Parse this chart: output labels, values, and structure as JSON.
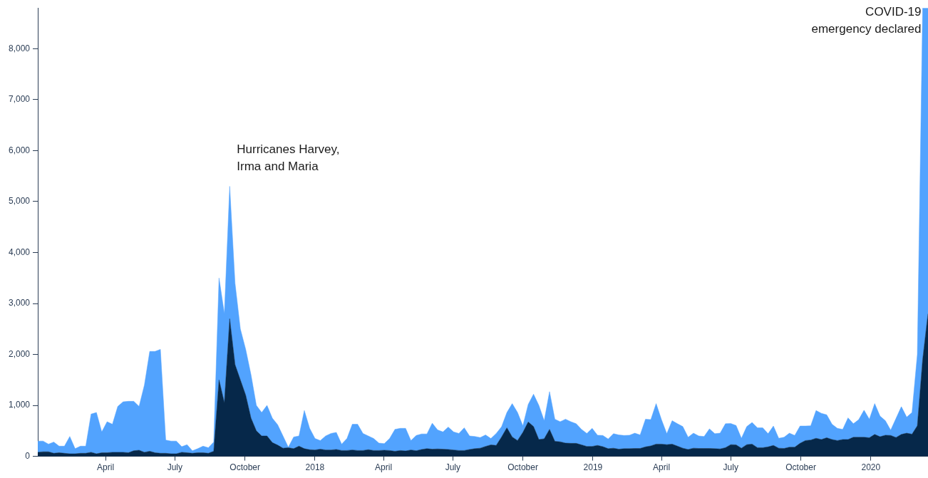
{
  "chart_data": {
    "type": "area",
    "stacked": true,
    "x": [
      "2017-01-02",
      "2017-01-09",
      "2017-01-16",
      "2017-01-23",
      "2017-01-30",
      "2017-02-06",
      "2017-02-13",
      "2017-02-20",
      "2017-02-27",
      "2017-03-06",
      "2017-03-13",
      "2017-03-20",
      "2017-03-27",
      "2017-04-03",
      "2017-04-10",
      "2017-04-17",
      "2017-04-24",
      "2017-05-01",
      "2017-05-08",
      "2017-05-15",
      "2017-05-22",
      "2017-05-29",
      "2017-06-05",
      "2017-06-12",
      "2017-06-19",
      "2017-06-26",
      "2017-07-03",
      "2017-07-10",
      "2017-07-17",
      "2017-07-24",
      "2017-07-31",
      "2017-08-07",
      "2017-08-14",
      "2017-08-21",
      "2017-08-28",
      "2017-09-04",
      "2017-09-11",
      "2017-09-18",
      "2017-09-25",
      "2017-10-02",
      "2017-10-09",
      "2017-10-16",
      "2017-10-23",
      "2017-10-30",
      "2017-11-06",
      "2017-11-13",
      "2017-11-20",
      "2017-11-27",
      "2017-12-04",
      "2017-12-11",
      "2017-12-18",
      "2017-12-25",
      "2018-01-01",
      "2018-01-08",
      "2018-01-15",
      "2018-01-22",
      "2018-01-29",
      "2018-02-05",
      "2018-02-12",
      "2018-02-19",
      "2018-02-26",
      "2018-03-05",
      "2018-03-12",
      "2018-03-19",
      "2018-03-26",
      "2018-04-02",
      "2018-04-09",
      "2018-04-16",
      "2018-04-23",
      "2018-04-30",
      "2018-05-07",
      "2018-05-14",
      "2018-05-21",
      "2018-05-28",
      "2018-06-04",
      "2018-06-11",
      "2018-06-18",
      "2018-06-25",
      "2018-07-02",
      "2018-07-09",
      "2018-07-16",
      "2018-07-23",
      "2018-07-30",
      "2018-08-06",
      "2018-08-13",
      "2018-08-20",
      "2018-08-27",
      "2018-09-03",
      "2018-09-10",
      "2018-09-17",
      "2018-09-24",
      "2018-10-01",
      "2018-10-08",
      "2018-10-15",
      "2018-10-22",
      "2018-10-29",
      "2018-11-05",
      "2018-11-12",
      "2018-11-19",
      "2018-11-26",
      "2018-12-03",
      "2018-12-10",
      "2018-12-17",
      "2018-12-24",
      "2018-12-31",
      "2019-01-07",
      "2019-01-14",
      "2019-01-21",
      "2019-01-28",
      "2019-02-04",
      "2019-02-11",
      "2019-02-18",
      "2019-02-25",
      "2019-03-04",
      "2019-03-11",
      "2019-03-18",
      "2019-03-25",
      "2019-04-01",
      "2019-04-08",
      "2019-04-15",
      "2019-04-22",
      "2019-04-29",
      "2019-05-06",
      "2019-05-13",
      "2019-05-20",
      "2019-05-27",
      "2019-06-03",
      "2019-06-10",
      "2019-06-17",
      "2019-06-24",
      "2019-07-01",
      "2019-07-08",
      "2019-07-15",
      "2019-07-22",
      "2019-07-29",
      "2019-08-05",
      "2019-08-12",
      "2019-08-19",
      "2019-08-26",
      "2019-09-02",
      "2019-09-09",
      "2019-09-16",
      "2019-09-23",
      "2019-09-30",
      "2019-10-07",
      "2019-10-14",
      "2019-10-21",
      "2019-10-28",
      "2019-11-04",
      "2019-11-11",
      "2019-11-18",
      "2019-11-25",
      "2019-12-02",
      "2019-12-09",
      "2019-12-16",
      "2019-12-23",
      "2019-12-30",
      "2020-01-06",
      "2020-01-13",
      "2020-01-20",
      "2020-01-27",
      "2020-02-03",
      "2020-02-10",
      "2020-02-17",
      "2020-02-24",
      "2020-03-02",
      "2020-03-09",
      "2020-03-16"
    ],
    "series": [
      {
        "color": "#06284a",
        "values": [
          80,
          90,
          90,
          60,
          70,
          60,
          50,
          50,
          60,
          60,
          80,
          50,
          70,
          70,
          80,
          80,
          80,
          70,
          110,
          120,
          80,
          100,
          70,
          60,
          60,
          50,
          50,
          80,
          70,
          60,
          70,
          70,
          60,
          100,
          1500,
          1050,
          2700,
          1800,
          1500,
          1200,
          750,
          500,
          400,
          400,
          270,
          220,
          160,
          170,
          150,
          200,
          150,
          130,
          125,
          140,
          125,
          125,
          135,
          115,
          115,
          125,
          115,
          115,
          130,
          115,
          115,
          120,
          115,
          100,
          115,
          105,
          125,
          110,
          135,
          150,
          140,
          145,
          140,
          135,
          125,
          115,
          115,
          135,
          150,
          160,
          195,
          225,
          215,
          380,
          560,
          380,
          310,
          470,
          675,
          585,
          330,
          345,
          530,
          295,
          285,
          260,
          255,
          255,
          225,
          195,
          195,
          215,
          190,
          150,
          160,
          140,
          150,
          150,
          155,
          155,
          185,
          205,
          240,
          240,
          230,
          240,
          200,
          160,
          135,
          160,
          155,
          155,
          155,
          150,
          145,
          170,
          230,
          225,
          160,
          230,
          240,
          170,
          170,
          185,
          215,
          160,
          155,
          180,
          180,
          255,
          310,
          320,
          355,
          330,
          365,
          330,
          310,
          330,
          330,
          375,
          375,
          375,
          365,
          430,
          385,
          415,
          410,
          370,
          430,
          455,
          435,
          600,
          1900,
          2800
        ]
      },
      {
        "color": "#52a3fe",
        "values": [
          220,
          210,
          150,
          220,
          130,
          140,
          340,
          100,
          140,
          140,
          750,
          810,
          410,
          610,
          550,
          900,
          990,
          1010,
          970,
          860,
          1320,
          1960,
          1990,
          2040,
          260,
          250,
          250,
          110,
          160,
          50,
          80,
          130,
          110,
          180,
          2000,
          1750,
          2600,
          1600,
          1000,
          900,
          850,
          500,
          460,
          600,
          480,
          400,
          240,
          10,
          230,
          200,
          750,
          420,
          225,
          170,
          275,
          325,
          335,
          125,
          235,
          505,
          515,
          335,
          270,
          235,
          145,
          130,
          235,
          430,
          435,
          445,
          185,
          300,
          305,
          290,
          510,
          375,
          340,
          440,
          355,
          335,
          445,
          265,
          240,
          210,
          225,
          125,
          235,
          200,
          300,
          655,
          550,
          130,
          345,
          635,
          670,
          355,
          740,
          435,
          395,
          470,
          425,
          385,
          305,
          255,
          355,
          200,
          220,
          190,
          285,
          280,
          260,
          265,
          300,
          265,
          545,
          515,
          795,
          480,
          215,
          460,
          440,
          425,
          240,
          295,
          245,
          235,
          385,
          295,
          310,
          470,
          415,
          380,
          195,
          355,
          425,
          390,
          390,
          260,
          380,
          195,
          220,
          275,
          230,
          340,
          285,
          280,
          545,
          515,
          450,
          300,
          240,
          200,
          425,
          265,
          345,
          530,
          365,
          605,
          405,
          285,
          105,
          375,
          545,
          315,
          425,
          1400,
          6900,
          6000
        ]
      }
    ],
    "xlim": [
      "2017-01-02",
      "2020-03-16"
    ],
    "ylim": [
      0,
      8800
    ],
    "xticks": [
      {
        "value": "2017-04-01",
        "label": "April"
      },
      {
        "value": "2017-07-01",
        "label": "July"
      },
      {
        "value": "2017-10-01",
        "label": "October"
      },
      {
        "value": "2018-01-01",
        "label": "2018"
      },
      {
        "value": "2018-04-01",
        "label": "April"
      },
      {
        "value": "2018-07-01",
        "label": "July"
      },
      {
        "value": "2018-10-01",
        "label": "October"
      },
      {
        "value": "2019-01-01",
        "label": "2019"
      },
      {
        "value": "2019-04-01",
        "label": "April"
      },
      {
        "value": "2019-07-01",
        "label": "July"
      },
      {
        "value": "2019-10-01",
        "label": "October"
      },
      {
        "value": "2020-01-01",
        "label": "2020"
      }
    ],
    "yticks": [
      0,
      {
        "value": 1000,
        "label": "1,000"
      },
      {
        "value": 2000,
        "label": "2,000"
      },
      {
        "value": 3000,
        "label": "3,000"
      },
      {
        "value": 4000,
        "label": "4,000"
      },
      {
        "value": 5000,
        "label": "5,000"
      },
      {
        "value": 6000,
        "label": "6,000"
      },
      {
        "value": 7000,
        "label": "7,000"
      },
      {
        "value": 8000,
        "label": "8,000"
      }
    ],
    "annotations": [
      {
        "text": "Hurricanes Harvey,\nIrma and Maria",
        "x": "2017-09-11",
        "y": 5300
      },
      {
        "text": "COVID-19\nemergency declared",
        "x": "2020-03-09",
        "y": 8800
      }
    ]
  }
}
